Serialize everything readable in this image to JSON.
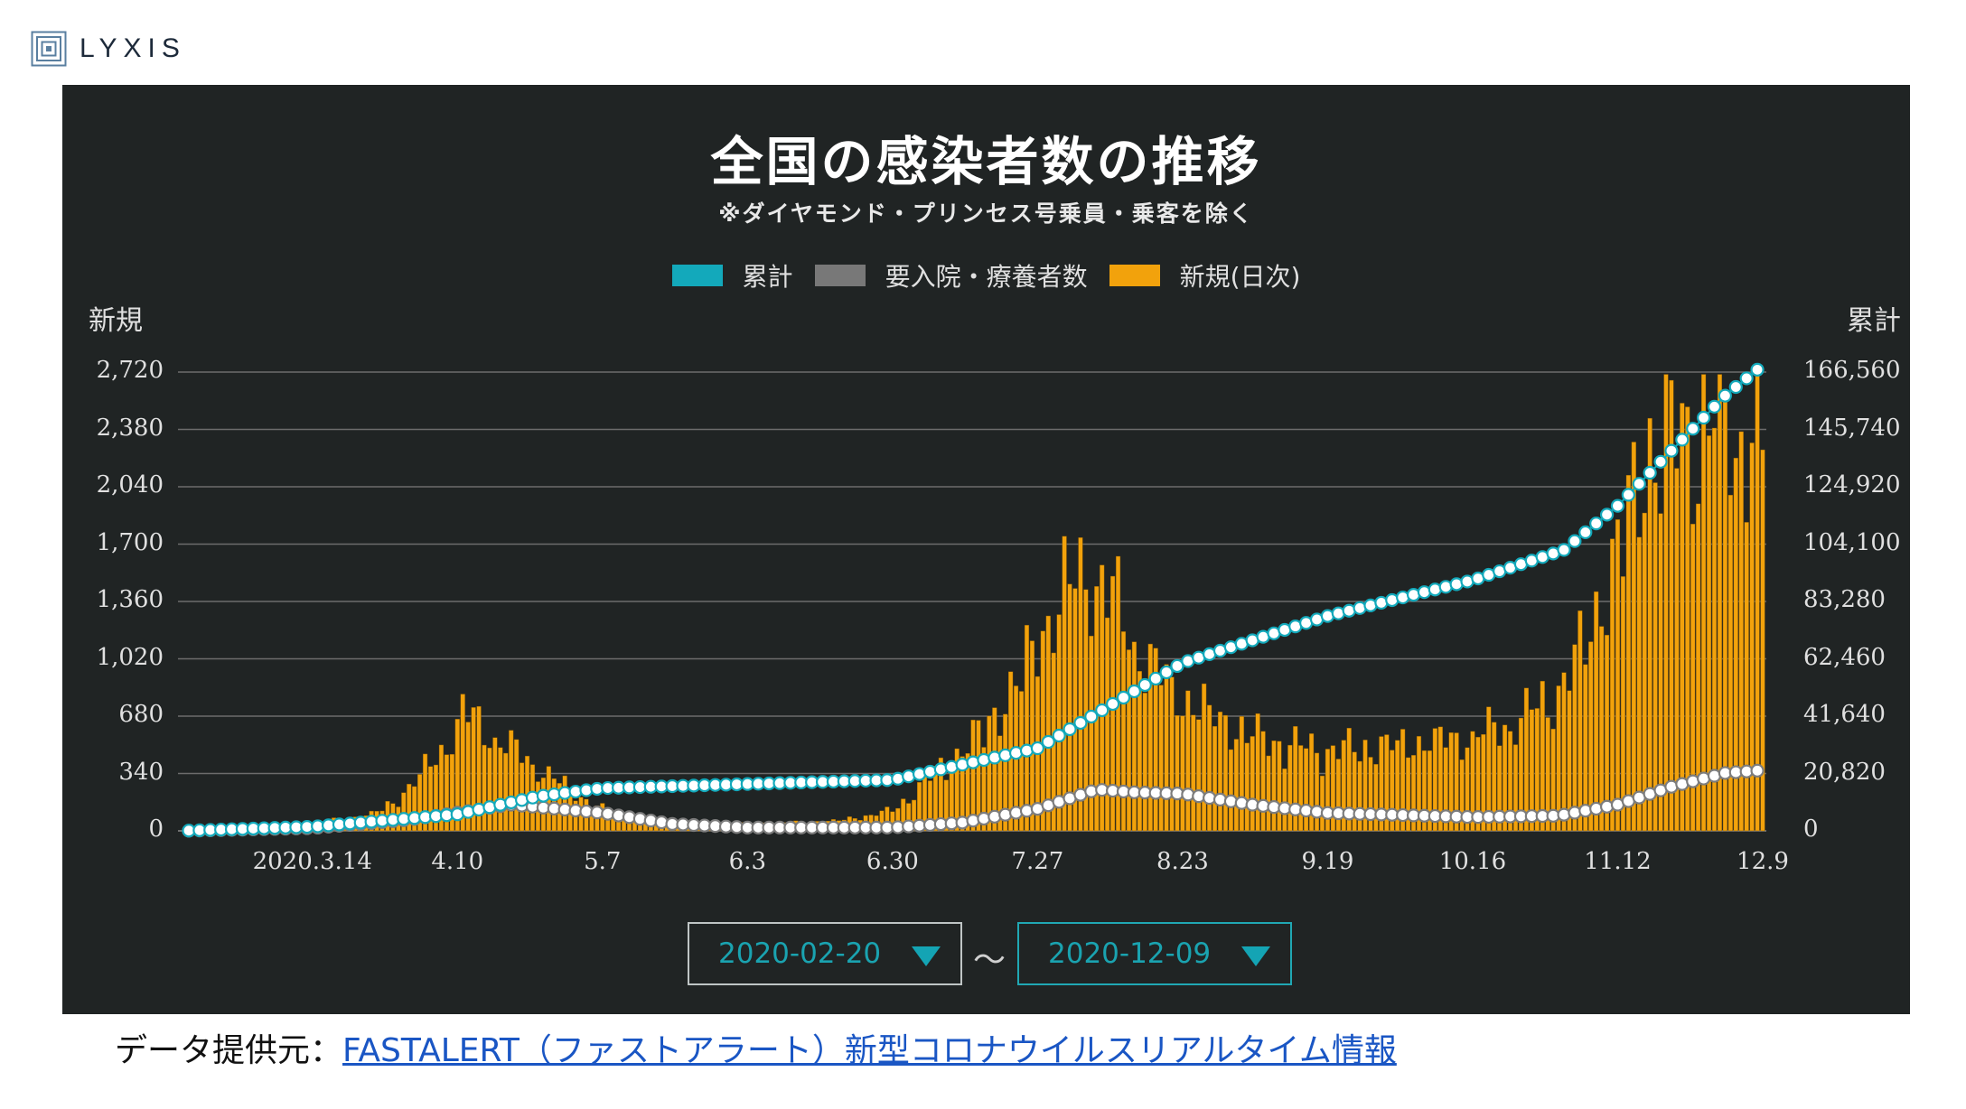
{
  "logo": {
    "text": "LYXIS",
    "icon": "square-spiral-icon"
  },
  "chart": {
    "title": "全国の感染者数の推移",
    "subtitle": "※ダイヤモンド・プリンセス号乗員・乗客を除く",
    "legend": [
      {
        "label": "累計",
        "color": "#13a9bb"
      },
      {
        "label": "要入院・療養者数",
        "color": "#787878"
      },
      {
        "label": "新規(日次)",
        "color": "#f2a20c"
      }
    ],
    "left_axis_title": "新規",
    "right_axis_title": "累計",
    "left_ticks": [
      "2,720",
      "2,380",
      "2,040",
      "1,700",
      "1,360",
      "1,020",
      "680",
      "340",
      "0"
    ],
    "right_ticks": [
      "166,560",
      "145,740",
      "124,920",
      "104,100",
      "83,280",
      "62,460",
      "41,640",
      "20,820",
      "0"
    ],
    "x_ticks": [
      "2020.3.14",
      "4.10",
      "5.7",
      "6.3",
      "6.30",
      "7.27",
      "8.23",
      "9.19",
      "10.16",
      "11.12",
      "12.9"
    ]
  },
  "chart_data": {
    "type": "bar",
    "x_start": "2020-02-20",
    "x_end": "2020-12-09",
    "y_left": {
      "label": "新規",
      "range": [
        0,
        2720
      ]
    },
    "y_right": {
      "label": "累計",
      "range": [
        0,
        166560
      ]
    },
    "grid": true,
    "legend_position": "top",
    "daily_keyframes": [
      [
        "2020-02-20",
        5
      ],
      [
        "2020-03-14",
        45
      ],
      [
        "2020-03-25",
        95
      ],
      [
        "2020-03-30",
        190
      ],
      [
        "2020-04-03",
        330
      ],
      [
        "2020-04-08",
        510
      ],
      [
        "2020-04-11",
        710
      ],
      [
        "2020-04-17",
        560
      ],
      [
        "2020-04-25",
        380
      ],
      [
        "2020-05-02",
        220
      ],
      [
        "2020-05-10",
        80
      ],
      [
        "2020-05-20",
        30
      ],
      [
        "2020-06-01",
        40
      ],
      [
        "2020-06-20",
        60
      ],
      [
        "2020-06-30",
        120
      ],
      [
        "2020-07-05",
        260
      ],
      [
        "2020-07-10",
        400
      ],
      [
        "2020-07-17",
        600
      ],
      [
        "2020-07-24",
        920
      ],
      [
        "2020-07-31",
        1400
      ],
      [
        "2020-08-07",
        1560
      ],
      [
        "2020-08-14",
        1120
      ],
      [
        "2020-08-21",
        840
      ],
      [
        "2020-08-28",
        700
      ],
      [
        "2020-09-04",
        580
      ],
      [
        "2020-09-12",
        510
      ],
      [
        "2020-09-19",
        480
      ],
      [
        "2020-10-01",
        510
      ],
      [
        "2020-10-16",
        560
      ],
      [
        "2020-10-24",
        650
      ],
      [
        "2020-10-31",
        800
      ],
      [
        "2020-11-05",
        1050
      ],
      [
        "2020-11-12",
        1650
      ],
      [
        "2020-11-18",
        2300
      ],
      [
        "2020-11-25",
        2380
      ],
      [
        "2020-12-02",
        2450
      ],
      [
        "2020-12-09",
        2250
      ]
    ],
    "cumulative_keyframes": [
      [
        "2020-02-20",
        100
      ],
      [
        "2020-03-14",
        1500
      ],
      [
        "2020-04-10",
        6000
      ],
      [
        "2020-04-25",
        12500
      ],
      [
        "2020-05-07",
        15500
      ],
      [
        "2020-06-03",
        17000
      ],
      [
        "2020-06-30",
        18500
      ],
      [
        "2020-07-27",
        30000
      ],
      [
        "2020-08-23",
        61000
      ],
      [
        "2020-09-19",
        78000
      ],
      [
        "2020-10-16",
        91000
      ],
      [
        "2020-11-02",
        102000
      ],
      [
        "2020-11-12",
        118000
      ],
      [
        "2020-11-22",
        138000
      ],
      [
        "2020-12-02",
        158000
      ],
      [
        "2020-12-09",
        169000
      ]
    ],
    "active_keyframes": [
      [
        "2020-02-20",
        50
      ],
      [
        "2020-03-14",
        1000
      ],
      [
        "2020-04-01",
        4000
      ],
      [
        "2020-04-20",
        9500
      ],
      [
        "2020-05-07",
        6500
      ],
      [
        "2020-05-20",
        2500
      ],
      [
        "2020-06-03",
        1200
      ],
      [
        "2020-06-30",
        1200
      ],
      [
        "2020-07-13",
        3000
      ],
      [
        "2020-07-27",
        8000
      ],
      [
        "2020-08-07",
        15000
      ],
      [
        "2020-08-14",
        14000
      ],
      [
        "2020-08-23",
        13500
      ],
      [
        "2020-09-05",
        9500
      ],
      [
        "2020-09-19",
        6500
      ],
      [
        "2020-10-16",
        5000
      ],
      [
        "2020-11-01",
        5500
      ],
      [
        "2020-11-12",
        9500
      ],
      [
        "2020-11-22",
        16000
      ],
      [
        "2020-12-02",
        21000
      ],
      [
        "2020-12-09",
        22000
      ]
    ]
  },
  "date_range": {
    "start": "2020-02-20",
    "end": "2020-12-09",
    "separator": "～"
  },
  "footer": {
    "label": "データ提供元：",
    "link_text": "FASTALERT（ファストアラート）新型コロナウイルスリアルタイム情報"
  }
}
